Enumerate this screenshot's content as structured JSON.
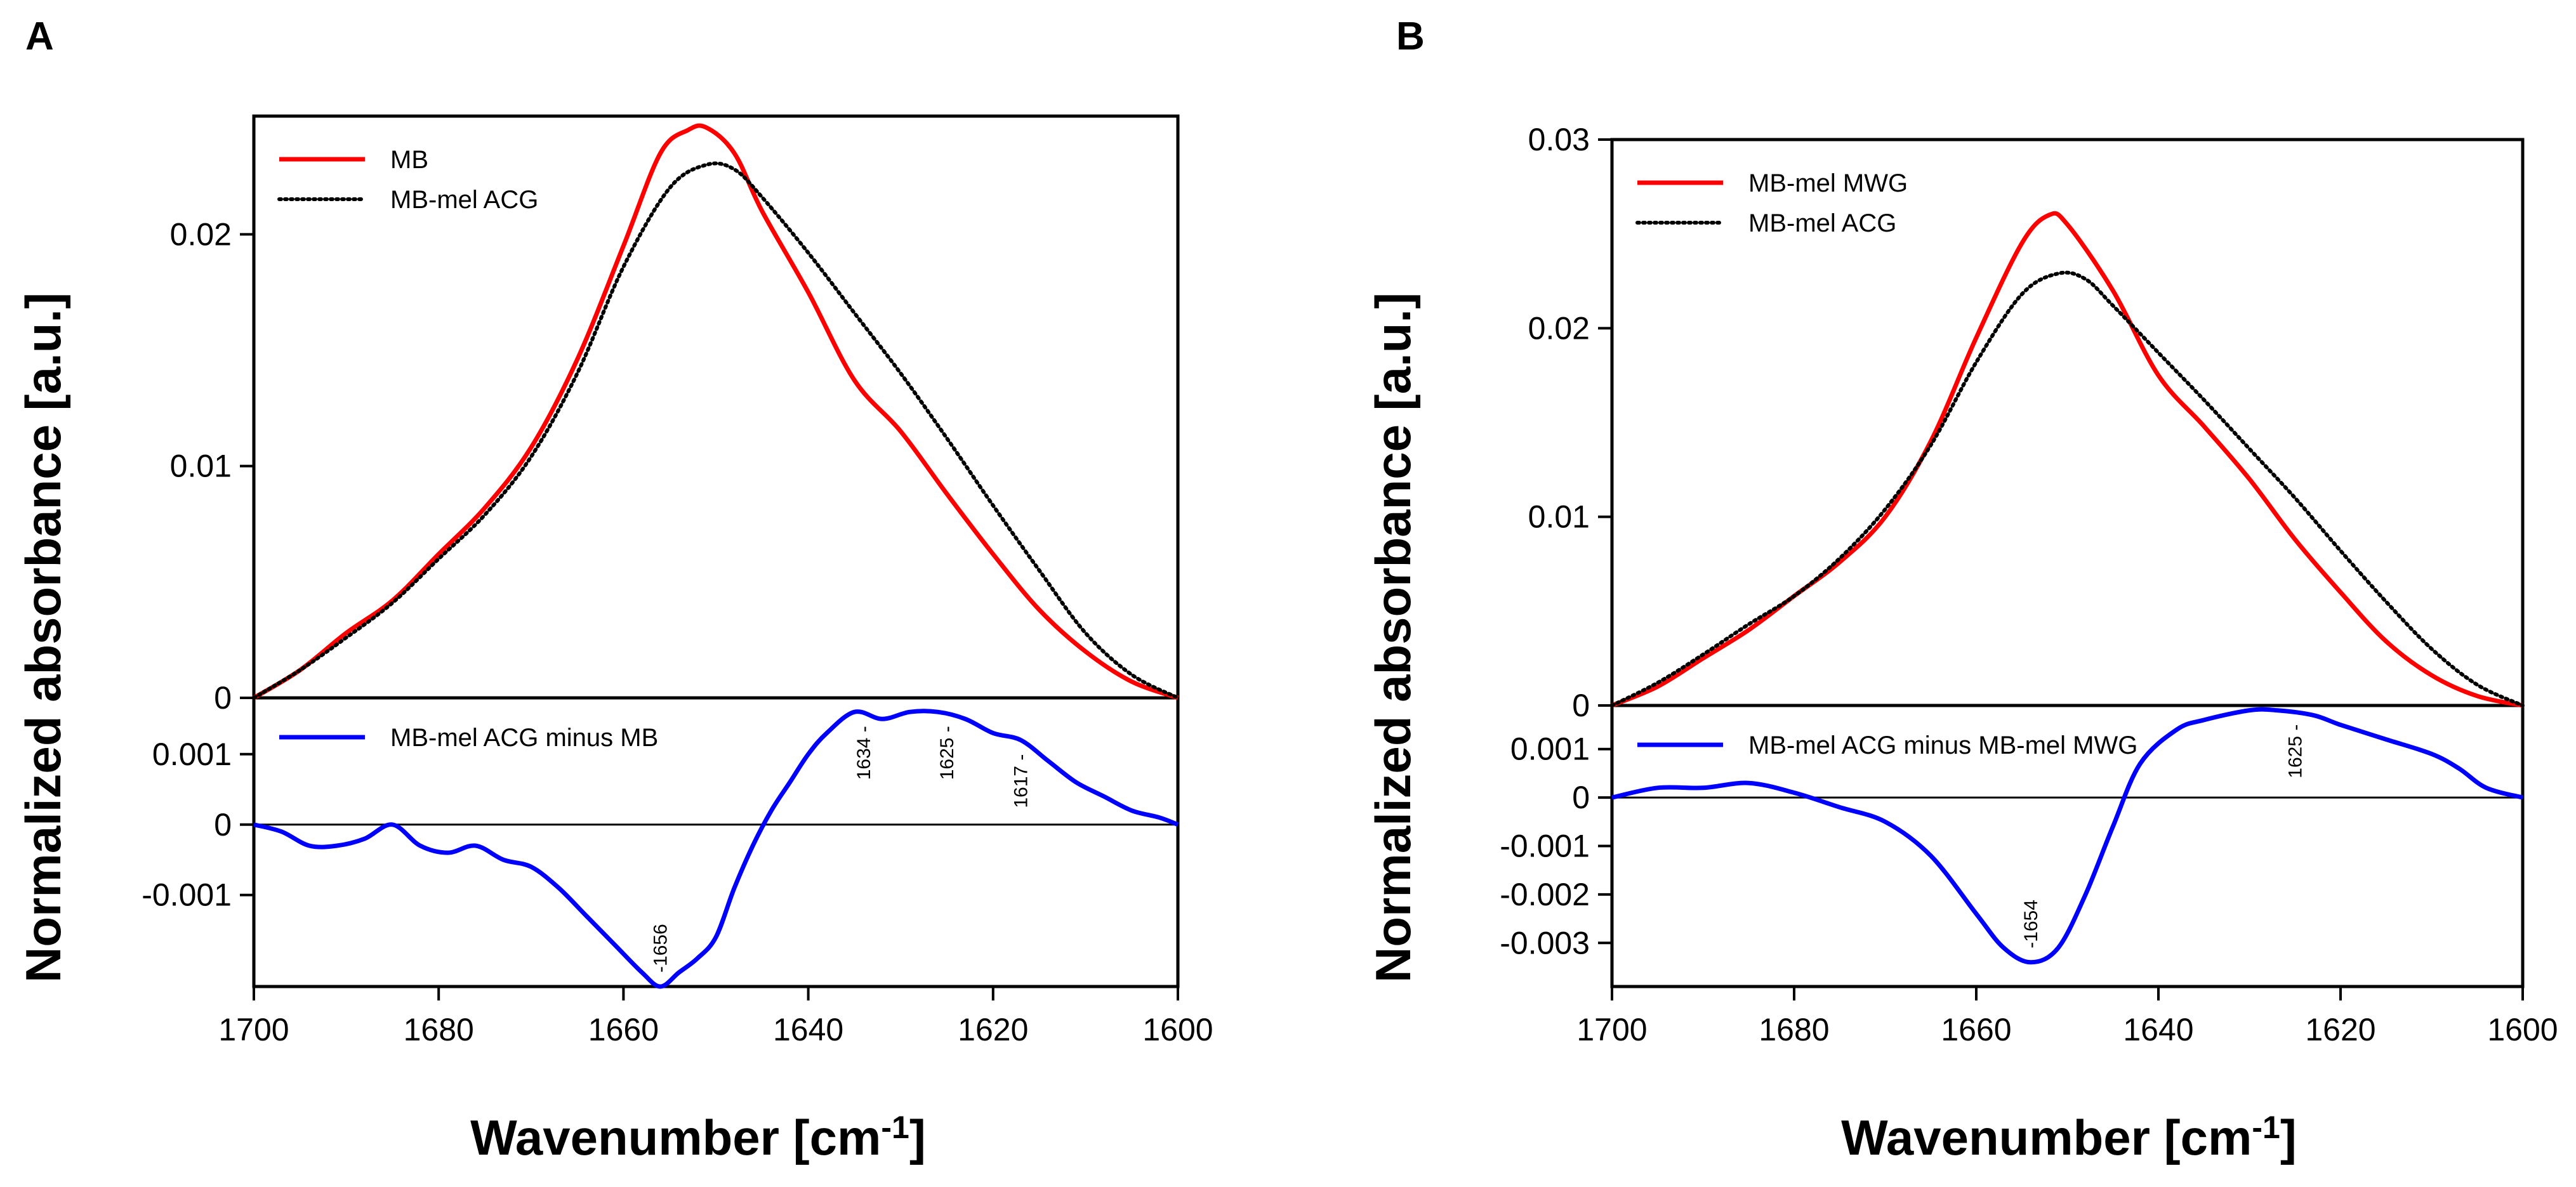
{
  "figure": {
    "panels": [
      "A",
      "B"
    ],
    "ylabel": "Normalized absorbance [a.u.]",
    "xlabel_main": "Wavenumber [cm",
    "xlabel_sup": "-1",
    "xlabel_end": "]"
  },
  "chart_data": [
    {
      "panel": "A",
      "type": "line",
      "xlim": [
        1700,
        1600
      ],
      "xticks": [
        1700,
        1680,
        1660,
        1640,
        1620,
        1600
      ],
      "xtick_labels": [
        "1700",
        "1680",
        "1660",
        "1640",
        "1620",
        "1600"
      ],
      "top": {
        "ylim": [
          0,
          0.0251
        ],
        "yticks": [
          0,
          0.01,
          0.02
        ],
        "ytick_labels": [
          "0",
          "0.01",
          "0.02"
        ],
        "legend": [
          "MB",
          "MB-mel ACG"
        ],
        "series": [
          {
            "name": "MB",
            "color": "#ff0000",
            "style": "solid",
            "x": [
              1700,
              1695,
              1690,
              1685,
              1680,
              1675,
              1670,
              1665,
              1660,
              1656,
              1653,
              1651,
              1648,
              1645,
              1640,
              1635,
              1630,
              1625,
              1620,
              1615,
              1610,
              1605,
              1600
            ],
            "y": [
              0,
              0.0012,
              0.0028,
              0.0042,
              0.0062,
              0.0082,
              0.0108,
              0.0146,
              0.0195,
              0.0235,
              0.0245,
              0.0246,
              0.0235,
              0.021,
              0.0175,
              0.0137,
              0.0115,
              0.0088,
              0.0062,
              0.0038,
              0.002,
              0.0007,
              0
            ]
          },
          {
            "name": "MB-mel ACG",
            "color": "#000000",
            "style": "dotted",
            "x": [
              1700,
              1695,
              1690,
              1685,
              1680,
              1675,
              1670,
              1665,
              1660,
              1655,
              1651,
              1648,
              1645,
              1640,
              1635,
              1630,
              1625,
              1620,
              1615,
              1610,
              1605,
              1600
            ],
            "y": [
              0,
              0.0012,
              0.0026,
              0.0041,
              0.006,
              0.0079,
              0.0104,
              0.014,
              0.0186,
              0.022,
              0.023,
              0.0228,
              0.0216,
              0.0192,
              0.0166,
              0.014,
              0.0112,
              0.0083,
              0.0055,
              0.0028,
              0.001,
              0
            ]
          }
        ]
      },
      "bottom": {
        "ylim": [
          -0.0023,
          0.0018
        ],
        "yticks": [
          -0.001,
          0,
          0.001
        ],
        "ytick_labels": [
          "-0.001",
          "0",
          "0.001"
        ],
        "legend": [
          "MB-mel ACG minus MB"
        ],
        "zero_line": true,
        "series": [
          {
            "name": "MB-mel ACG minus MB",
            "color": "#0000ff",
            "style": "solid",
            "x": [
              1700,
              1697,
              1694,
              1691,
              1688,
              1685,
              1682,
              1679,
              1676,
              1673,
              1670,
              1667,
              1664,
              1661,
              1658,
              1656,
              1654,
              1652,
              1650,
              1648,
              1646,
              1644,
              1642,
              1640,
              1638,
              1635,
              1632,
              1629,
              1626,
              1623,
              1620,
              1617,
              1614,
              1611,
              1608,
              1605,
              1602,
              1600
            ],
            "y": [
              0,
              -0.0001,
              -0.0003,
              -0.0003,
              -0.0002,
              0,
              -0.0003,
              -0.0004,
              -0.0003,
              -0.0005,
              -0.0006,
              -0.0009,
              -0.0013,
              -0.0017,
              -0.0021,
              -0.0023,
              -0.0021,
              -0.0019,
              -0.0016,
              -0.0009,
              -0.0003,
              0.0002,
              0.0006,
              0.001,
              0.0013,
              0.0016,
              0.0015,
              0.0016,
              0.0016,
              0.0015,
              0.0013,
              0.0012,
              0.0009,
              0.0006,
              0.0004,
              0.0002,
              0.0001,
              0
            ]
          }
        ],
        "annotations": [
          {
            "x": 1656,
            "y": -0.0023,
            "label": "-1656",
            "side": "above"
          },
          {
            "x": 1634,
            "y": 0.0016,
            "label": "1634 -",
            "side": "below"
          },
          {
            "x": 1625,
            "y": 0.0016,
            "label": "1625 -",
            "side": "below"
          },
          {
            "x": 1617,
            "y": 0.0012,
            "label": "1617 -",
            "side": "below"
          }
        ]
      }
    },
    {
      "panel": "B",
      "type": "line",
      "xlim": [
        1700,
        1600
      ],
      "xticks": [
        1700,
        1680,
        1660,
        1640,
        1620,
        1600
      ],
      "xtick_labels": [
        "1700",
        "1680",
        "1660",
        "1640",
        "1620",
        "1600"
      ],
      "top": {
        "ylim": [
          0,
          0.03
        ],
        "yticks": [
          0,
          0.01,
          0.02,
          0.03
        ],
        "ytick_labels": [
          "0",
          "0.01",
          "0.02",
          "0.03"
        ],
        "legend": [
          "MB-mel MWG",
          "MB-mel ACG"
        ],
        "series": [
          {
            "name": "MB-mel MWG",
            "color": "#ff0000",
            "style": "solid",
            "x": [
              1700,
              1695,
              1690,
              1685,
              1680,
              1675,
              1670,
              1665,
              1660,
              1655,
              1652,
              1650,
              1645,
              1640,
              1635,
              1630,
              1625,
              1620,
              1615,
              1610,
              1605,
              1600
            ],
            "y": [
              0,
              0.001,
              0.0025,
              0.004,
              0.0058,
              0.0076,
              0.01,
              0.014,
              0.0195,
              0.0245,
              0.026,
              0.0255,
              0.022,
              0.0175,
              0.0148,
              0.012,
              0.0088,
              0.006,
              0.0034,
              0.0016,
              0.0005,
              0
            ]
          },
          {
            "name": "MB-mel ACG",
            "color": "#000000",
            "style": "dotted",
            "x": [
              1700,
              1695,
              1690,
              1685,
              1680,
              1675,
              1670,
              1665,
              1660,
              1655,
              1651,
              1648,
              1645,
              1640,
              1635,
              1630,
              1625,
              1620,
              1615,
              1610,
              1605,
              1600
            ],
            "y": [
              0,
              0.0012,
              0.0027,
              0.0043,
              0.0058,
              0.0078,
              0.0104,
              0.0138,
              0.0182,
              0.0218,
              0.0229,
              0.0226,
              0.0212,
              0.0187,
              0.0162,
              0.0136,
              0.011,
              0.0082,
              0.0055,
              0.003,
              0.0011,
              0
            ]
          }
        ]
      },
      "bottom": {
        "ylim": [
          -0.0039,
          0.0019
        ],
        "yticks": [
          -0.003,
          -0.002,
          -0.001,
          0,
          0.001
        ],
        "ytick_labels": [
          "-0.003",
          "-0.002",
          "-0.001",
          "0",
          "0.001"
        ],
        "legend": [
          "MB-mel ACG minus MB-mel MWG"
        ],
        "zero_line": true,
        "series": [
          {
            "name": "MB-mel ACG minus MB-mel MWG",
            "color": "#0000ff",
            "style": "solid",
            "x": [
              1700,
              1695,
              1690,
              1685,
              1680,
              1675,
              1670,
              1665,
              1660,
              1657,
              1654,
              1651,
              1648,
              1645,
              1642,
              1638,
              1635,
              1630,
              1627,
              1623,
              1620,
              1615,
              1610,
              1607,
              1604,
              1600
            ],
            "y": [
              0,
              0.0002,
              0.0002,
              0.0003,
              0.0001,
              -0.0002,
              -0.0005,
              -0.0012,
              -0.0024,
              -0.0031,
              -0.0034,
              -0.0031,
              -0.002,
              -0.0006,
              0.0007,
              0.0014,
              0.0016,
              0.0018,
              0.0018,
              0.0017,
              0.0015,
              0.0012,
              0.0009,
              0.0006,
              0.0002,
              0
            ]
          }
        ],
        "annotations": [
          {
            "x": 1654,
            "y": -0.0034,
            "label": "-1654",
            "side": "above"
          },
          {
            "x": 1625,
            "y": 0.0018,
            "label": "1625 -",
            "side": "below"
          }
        ]
      }
    }
  ]
}
